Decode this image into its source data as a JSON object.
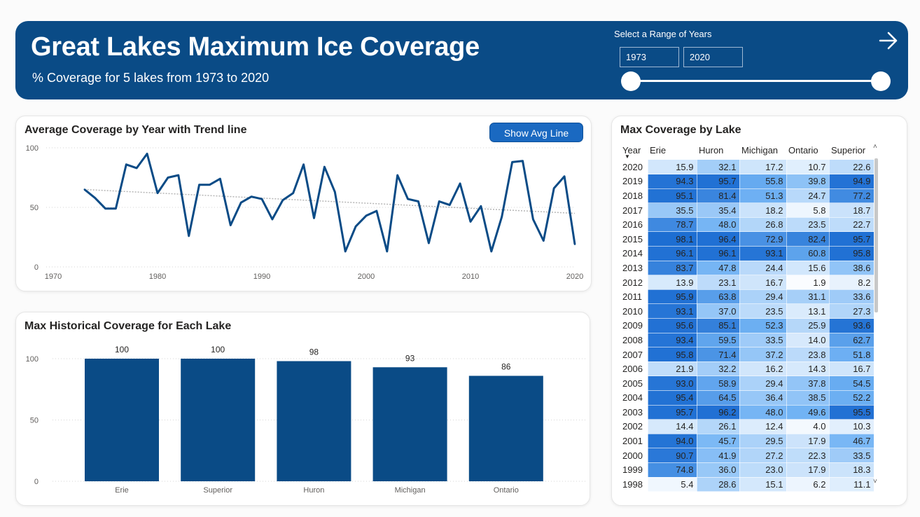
{
  "header": {
    "title": "Great Lakes Maximum Ice Coverage",
    "subtitle": "% Coverage for 5 lakes from 1973 to 2020",
    "slicer_label": "Select a Range of Years",
    "year_start": "1973",
    "year_end": "2020",
    "icon": "arrow-right-icon"
  },
  "colors": {
    "header_bg": "#0a4b86",
    "line": "#0a4b86",
    "bar": "#0a4b86",
    "button": "#1a69c1",
    "heat_low": "#ffffff",
    "heat_high": "#1a6bd1"
  },
  "line_card": {
    "title": "Average Coverage by Year with Trend line",
    "button_label": "Show Avg Line"
  },
  "bar_card": {
    "title": "Max Historical Coverage for Each Lake"
  },
  "table_card": {
    "title": "Max Coverage by Lake"
  },
  "chart_data": [
    {
      "type": "line",
      "title": "Average Coverage by Year with Trend line",
      "x": [
        1973,
        1974,
        1975,
        1976,
        1977,
        1978,
        1979,
        1980,
        1981,
        1982,
        1983,
        1984,
        1985,
        1986,
        1987,
        1988,
        1989,
        1990,
        1991,
        1992,
        1993,
        1994,
        1995,
        1996,
        1997,
        1998,
        1999,
        2000,
        2001,
        2002,
        2003,
        2004,
        2005,
        2006,
        2007,
        2008,
        2009,
        2010,
        2011,
        2012,
        2013,
        2014,
        2015,
        2016,
        2017,
        2018,
        2019,
        2020
      ],
      "series": [
        {
          "values": [
            65,
            58,
            49,
            49,
            86,
            83,
            95,
            62,
            75,
            77,
            26,
            69,
            69,
            74,
            35,
            54,
            59,
            57,
            40,
            56,
            62,
            86,
            41,
            84,
            63,
            13,
            34,
            43,
            47,
            13,
            77,
            57,
            55,
            20,
            55,
            52,
            70,
            38,
            51,
            13,
            42,
            88,
            89,
            40,
            22,
            66,
            76,
            19
          ]
        }
      ],
      "trend": [
        65,
        45
      ],
      "xlim": [
        1970,
        2020
      ],
      "ylim": [
        0,
        100
      ],
      "x_ticks": [
        1970,
        1980,
        1990,
        2000,
        2010,
        2020
      ],
      "y_ticks": [
        0,
        50,
        100
      ],
      "grid": true
    },
    {
      "type": "bar",
      "title": "Max Historical Coverage for Each Lake",
      "categories": [
        "Erie",
        "Superior",
        "Huron",
        "Michigan",
        "Ontario"
      ],
      "values": [
        100,
        100,
        98,
        93,
        86
      ],
      "ylim": [
        0,
        100
      ],
      "y_ticks": [
        0,
        50,
        100
      ],
      "grid": true
    },
    {
      "type": "table",
      "title": "Max Coverage by Lake",
      "columns": [
        "Year",
        "Erie",
        "Huron",
        "Michigan",
        "Ontario",
        "Superior"
      ],
      "rows": [
        [
          "2020",
          15.9,
          32.1,
          17.2,
          10.7,
          22.6
        ],
        [
          "2019",
          94.3,
          95.7,
          55.8,
          39.8,
          94.9
        ],
        [
          "2018",
          95.1,
          81.4,
          51.3,
          24.7,
          77.2
        ],
        [
          "2017",
          35.5,
          35.4,
          18.2,
          5.8,
          18.7
        ],
        [
          "2016",
          78.7,
          48.0,
          26.8,
          23.5,
          22.7
        ],
        [
          "2015",
          98.1,
          96.4,
          72.9,
          82.4,
          95.7
        ],
        [
          "2014",
          96.1,
          96.1,
          93.1,
          60.8,
          95.8
        ],
        [
          "2013",
          83.7,
          47.8,
          24.4,
          15.6,
          38.6
        ],
        [
          "2012",
          13.9,
          23.1,
          16.7,
          1.9,
          8.2
        ],
        [
          "2011",
          95.9,
          63.8,
          29.4,
          31.1,
          33.6
        ],
        [
          "2010",
          93.1,
          37.0,
          23.5,
          13.1,
          27.3
        ],
        [
          "2009",
          95.6,
          85.1,
          52.3,
          25.9,
          93.6
        ],
        [
          "2008",
          93.4,
          59.5,
          33.5,
          14.0,
          62.7
        ],
        [
          "2007",
          95.8,
          71.4,
          37.2,
          23.8,
          51.8
        ],
        [
          "2006",
          21.9,
          32.2,
          16.2,
          14.3,
          16.7
        ],
        [
          "2005",
          93.0,
          58.9,
          29.4,
          37.8,
          54.5
        ],
        [
          "2004",
          95.4,
          64.5,
          36.4,
          38.5,
          52.2
        ],
        [
          "2003",
          95.7,
          96.2,
          48.0,
          49.6,
          95.5
        ],
        [
          "2002",
          14.4,
          26.1,
          12.4,
          4.0,
          10.3
        ],
        [
          "2001",
          94.0,
          45.7,
          29.5,
          17.9,
          46.7
        ],
        [
          "2000",
          90.7,
          41.9,
          27.2,
          22.3,
          33.5
        ],
        [
          "1999",
          74.8,
          36.0,
          23.0,
          17.9,
          18.3
        ],
        [
          "1998",
          5.4,
          28.6,
          15.1,
          6.2,
          11.1
        ]
      ]
    }
  ]
}
